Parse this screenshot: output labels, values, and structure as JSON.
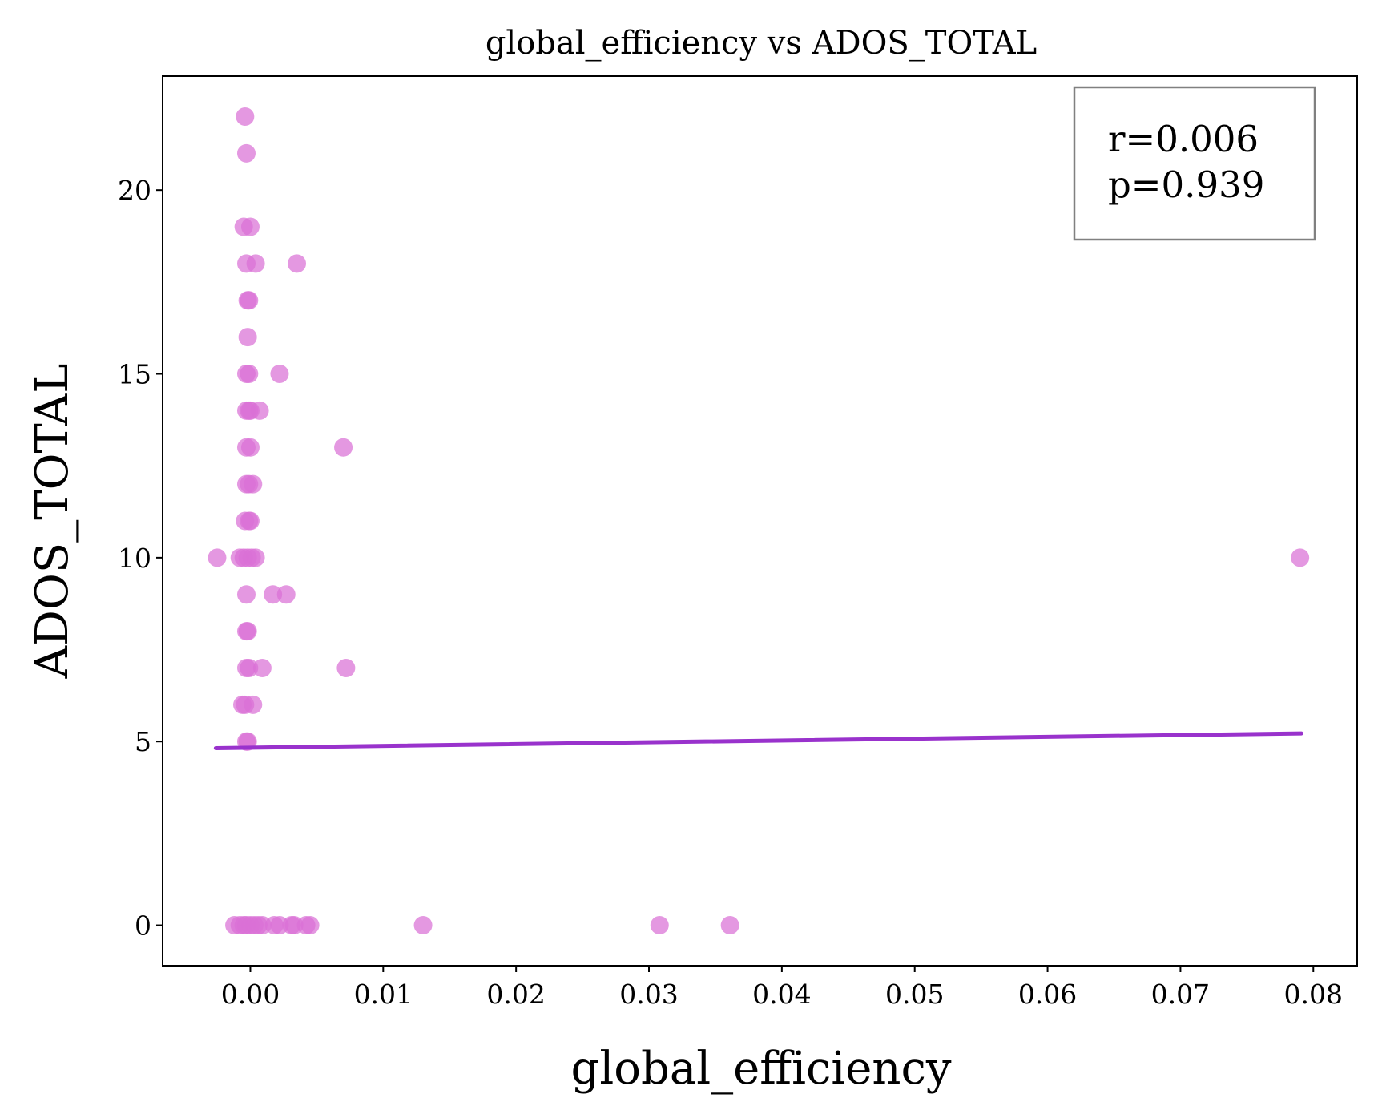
{
  "chart_data": {
    "type": "scatter",
    "title": "global_efficiency vs ADOS_TOTAL",
    "xlabel": "global_efficiency",
    "ylabel": "ADOS_TOTAL",
    "xlim": [
      -0.0066,
      0.0833
    ],
    "ylim": [
      -1.1,
      23.1
    ],
    "xticks": [
      0.0,
      0.01,
      0.02,
      0.03,
      0.04,
      0.05,
      0.06,
      0.07,
      0.08
    ],
    "xtick_labels": [
      "0.00",
      "0.01",
      "0.02",
      "0.03",
      "0.04",
      "0.05",
      "0.06",
      "0.07",
      "0.08"
    ],
    "yticks": [
      0,
      5,
      10,
      15,
      20
    ],
    "ytick_labels": [
      "0",
      "5",
      "10",
      "15",
      "20"
    ],
    "grid": false,
    "point_color": "#DA70D6",
    "line_color": "#9932CC",
    "annotation": {
      "lines": [
        "r=0.006",
        "p=0.939"
      ],
      "placement": "top-right",
      "text_color": "#808080",
      "border_color": "#808080"
    },
    "fit_line": {
      "x": [
        -0.0026,
        0.0791
      ],
      "y": [
        4.82,
        5.22
      ]
    },
    "points": [
      {
        "x": -0.0004,
        "y": 22
      },
      {
        "x": -0.0003,
        "y": 21
      },
      {
        "x": -0.0005,
        "y": 19
      },
      {
        "x": 0.0,
        "y": 19
      },
      {
        "x": -0.0003,
        "y": 18
      },
      {
        "x": 0.0004,
        "y": 18
      },
      {
        "x": 0.0035,
        "y": 18
      },
      {
        "x": -0.0002,
        "y": 17
      },
      {
        "x": -0.0001,
        "y": 17
      },
      {
        "x": -0.0002,
        "y": 16
      },
      {
        "x": -0.0003,
        "y": 15
      },
      {
        "x": -0.0001,
        "y": 15
      },
      {
        "x": 0.0022,
        "y": 15
      },
      {
        "x": -0.0003,
        "y": 14
      },
      {
        "x": -0.0001,
        "y": 14
      },
      {
        "x": 0.0,
        "y": 14
      },
      {
        "x": 0.0007,
        "y": 14
      },
      {
        "x": -0.0003,
        "y": 13
      },
      {
        "x": 0.0,
        "y": 13
      },
      {
        "x": 0.007,
        "y": 13
      },
      {
        "x": -0.0003,
        "y": 12
      },
      {
        "x": -0.0001,
        "y": 12
      },
      {
        "x": 0.0002,
        "y": 12
      },
      {
        "x": -0.0004,
        "y": 11
      },
      {
        "x": -0.0001,
        "y": 11
      },
      {
        "x": 0.0,
        "y": 11
      },
      {
        "x": -0.0025,
        "y": 10
      },
      {
        "x": -0.0008,
        "y": 10
      },
      {
        "x": -0.0005,
        "y": 10
      },
      {
        "x": -0.0002,
        "y": 10
      },
      {
        "x": 0.0001,
        "y": 10
      },
      {
        "x": 0.0004,
        "y": 10
      },
      {
        "x": 0.079,
        "y": 10
      },
      {
        "x": -0.0003,
        "y": 9
      },
      {
        "x": 0.0017,
        "y": 9
      },
      {
        "x": 0.0027,
        "y": 9
      },
      {
        "x": -0.0003,
        "y": 8
      },
      {
        "x": -0.0002,
        "y": 8
      },
      {
        "x": -0.0003,
        "y": 7
      },
      {
        "x": -0.0001,
        "y": 7
      },
      {
        "x": 0.0009,
        "y": 7
      },
      {
        "x": 0.0072,
        "y": 7
      },
      {
        "x": -0.0006,
        "y": 6
      },
      {
        "x": -0.0004,
        "y": 6
      },
      {
        "x": 0.0002,
        "y": 6
      },
      {
        "x": -0.0003,
        "y": 5
      },
      {
        "x": -0.0002,
        "y": 5
      },
      {
        "x": -0.0012,
        "y": 0
      },
      {
        "x": -0.0008,
        "y": 0
      },
      {
        "x": -0.0005,
        "y": 0
      },
      {
        "x": -0.0003,
        "y": 0
      },
      {
        "x": 0.0,
        "y": 0
      },
      {
        "x": 0.0003,
        "y": 0
      },
      {
        "x": 0.0006,
        "y": 0
      },
      {
        "x": 0.0009,
        "y": 0
      },
      {
        "x": 0.0018,
        "y": 0
      },
      {
        "x": 0.0022,
        "y": 0
      },
      {
        "x": 0.0031,
        "y": 0
      },
      {
        "x": 0.0033,
        "y": 0
      },
      {
        "x": 0.0042,
        "y": 0
      },
      {
        "x": 0.0045,
        "y": 0
      },
      {
        "x": 0.013,
        "y": 0
      },
      {
        "x": 0.0308,
        "y": 0
      },
      {
        "x": 0.0361,
        "y": 0
      }
    ]
  }
}
